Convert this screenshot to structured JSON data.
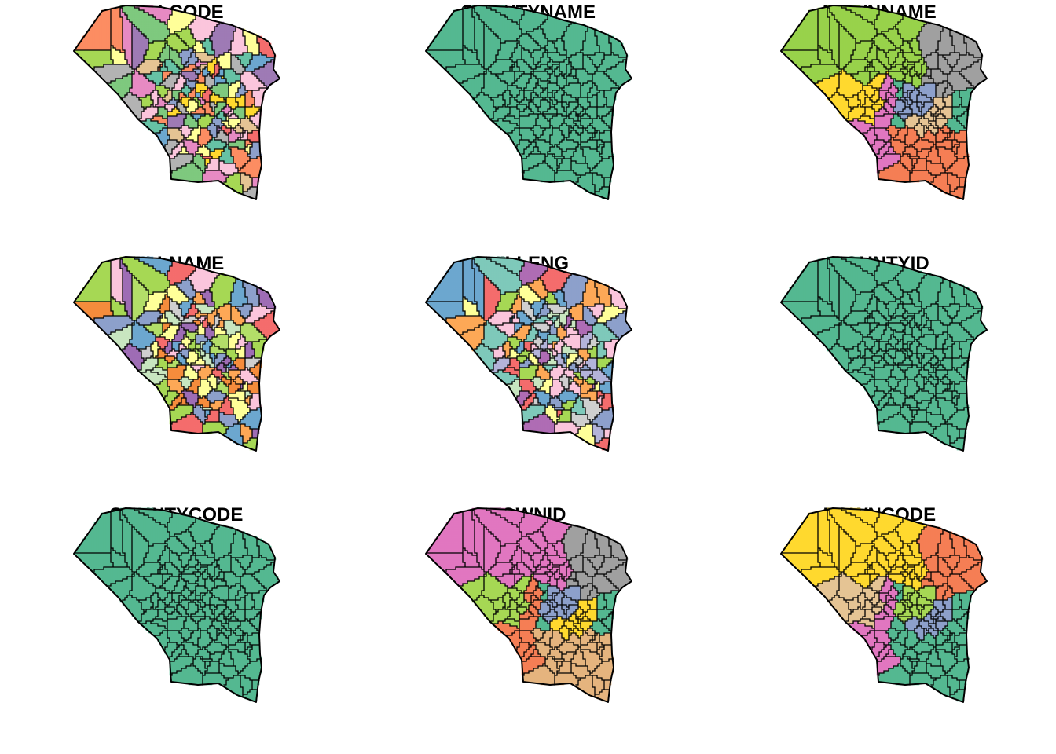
{
  "figure": {
    "panels": [
      {
        "title": "VILLCODE",
        "scheme": "many",
        "palette": [
          "#66C2A5",
          "#FC8D62",
          "#8DA0CB",
          "#E78AC3",
          "#A6D854",
          "#FFD92F",
          "#E5C494",
          "#B3B3B3",
          "#F46D6D",
          "#FFFF99",
          "#9E7BB5",
          "#FBC5DC",
          "#7FC97F",
          "#6DA7CF"
        ]
      },
      {
        "title": "COUNTYNAME",
        "scheme": "single",
        "palette": [
          "#54B891"
        ]
      },
      {
        "title": "TOWNNAME",
        "scheme": "district",
        "palette": [
          "#98D24B",
          "#A0A0A0",
          "#8DA0CB",
          "#FFD92F",
          "#E5C494",
          "#E177C0",
          "#F57E55",
          "#54B891"
        ]
      },
      {
        "title": "VILLNAME",
        "scheme": "many",
        "palette": [
          "#FDA857",
          "#F46D6D",
          "#C8E6C0",
          "#FBC5DC",
          "#9E6DB5",
          "#FFFF99",
          "#6DA7CF",
          "#CFCFCF",
          "#A6D854",
          "#8DA0CB",
          "#F58C3C",
          "#B3DE69"
        ]
      },
      {
        "title": "VILLENG",
        "scheme": "many",
        "palette": [
          "#AF6DB4",
          "#C8E6C0",
          "#CFCFCF",
          "#FFFF99",
          "#F46D6D",
          "#7FC9BA",
          "#6DA7CF",
          "#A6D854",
          "#FDA857",
          "#FBC5DC",
          "#8DA0CB",
          "#B3B3D9"
        ]
      },
      {
        "title": "COUNTYID",
        "scheme": "single",
        "palette": [
          "#54B891"
        ]
      },
      {
        "title": "COUNTYCODE",
        "scheme": "single",
        "palette": [
          "#54B891"
        ]
      },
      {
        "title": "TOWNID",
        "scheme": "district",
        "palette": [
          "#E177C0",
          "#A0A0A0",
          "#8DA0CB",
          "#A6D854",
          "#FFD92F",
          "#F57E55",
          "#E5B47E",
          "#54B891"
        ]
      },
      {
        "title": "TOWNCODE",
        "scheme": "district",
        "palette": [
          "#FFD92F",
          "#F57E55",
          "#A6D854",
          "#E5C494",
          "#8DA0CB",
          "#E177C0",
          "#54B891",
          "#54B891"
        ]
      }
    ]
  }
}
